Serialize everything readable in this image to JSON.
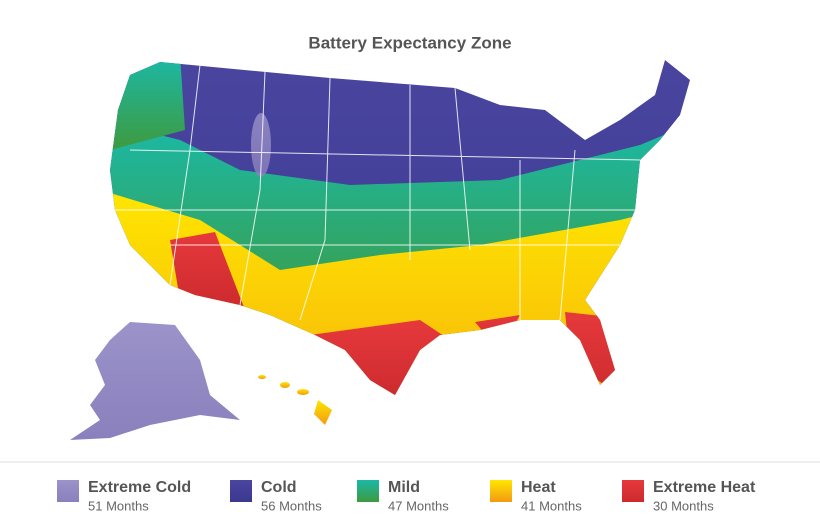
{
  "title": "Battery Expectancy Zone",
  "legend": [
    {
      "label": "Extreme Cold",
      "sublabel": "51 Months",
      "colors": [
        "#9b93c9",
        "#8a80bd"
      ]
    },
    {
      "label": "Cold",
      "sublabel": "56 Months",
      "colors": [
        "#4a46a0",
        "#3b3890"
      ]
    },
    {
      "label": "Mild",
      "sublabel": "47 Months",
      "colors": [
        "#1ab9a8",
        "#3f9a3e"
      ]
    },
    {
      "label": "Heat",
      "sublabel": "41 Months",
      "colors": [
        "#ffe600",
        "#f29a12"
      ]
    },
    {
      "label": "Extreme Heat",
      "sublabel": "30 Months",
      "colors": [
        "#e6393c",
        "#cc2a2e"
      ]
    }
  ]
}
